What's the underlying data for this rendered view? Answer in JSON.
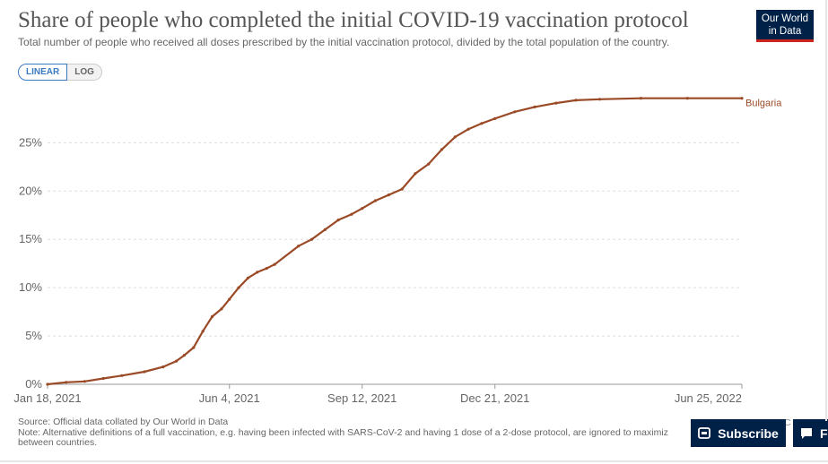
{
  "header": {
    "title": "Share of people who completed the initial COVID-19 vaccination protocol",
    "subtitle": "Total number of people who received all doses prescribed by the initial vaccination protocol, divided by the total population of the country.",
    "logo_line1": "Our World",
    "logo_line2": "in Data"
  },
  "controls": {
    "linear_label": "LINEAR",
    "log_label": "LOG"
  },
  "footer": {
    "source": "Source: Official data collated by Our World in Data",
    "note_line1": "Note: Alternative definitions of a full vaccination, e.g. having been infected with SARS-CoV-2 and having 1 dose of a 2-dose protocol, are ignored to maximiz",
    "note_line2": "between countries.",
    "subscribe_label": "Subscribe",
    "f_label": "F",
    "c_label": "C"
  },
  "colors": {
    "series": "#9a4a26",
    "grid": "#dddddd",
    "accent": "#002147"
  },
  "chart_data": {
    "type": "line",
    "title": "Share of people who completed the initial COVID-19 vaccination protocol",
    "subtitle": "Total number of people who received all doses prescribed by the initial vaccination protocol, divided by the total population of the country.",
    "xlabel": "",
    "ylabel": "",
    "x_tick_labels": [
      "Jan 18, 2021",
      "Jun 4, 2021",
      "Sep 12, 2021",
      "Dec 21, 2021",
      "Jun 25, 2022"
    ],
    "x_tick_dates": [
      "2021-01-18",
      "2021-06-04",
      "2021-09-12",
      "2021-12-21",
      "2022-06-25"
    ],
    "y_tick_labels": [
      "0%",
      "5%",
      "10%",
      "15%",
      "20%",
      "25%"
    ],
    "y_ticks": [
      0,
      5,
      10,
      15,
      20,
      25
    ],
    "xlim": [
      "2021-01-18",
      "2022-06-25"
    ],
    "ylim": [
      0,
      29.5
    ],
    "grid": "horizontal dashed",
    "legend": "line-end label",
    "series": [
      {
        "name": "Bulgaria",
        "color": "#9a4a26",
        "points": [
          [
            "2021-01-18",
            0.0
          ],
          [
            "2021-02-01",
            0.2
          ],
          [
            "2021-02-15",
            0.3
          ],
          [
            "2021-03-01",
            0.6
          ],
          [
            "2021-03-15",
            0.9
          ],
          [
            "2021-04-01",
            1.3
          ],
          [
            "2021-04-15",
            1.8
          ],
          [
            "2021-04-25",
            2.4
          ],
          [
            "2021-05-01",
            3.0
          ],
          [
            "2021-05-08",
            3.8
          ],
          [
            "2021-05-15",
            5.5
          ],
          [
            "2021-05-22",
            7.0
          ],
          [
            "2021-05-29",
            7.8
          ],
          [
            "2021-06-04",
            8.8
          ],
          [
            "2021-06-11",
            10.0
          ],
          [
            "2021-06-18",
            11.0
          ],
          [
            "2021-06-25",
            11.6
          ],
          [
            "2021-07-02",
            12.0
          ],
          [
            "2021-07-08",
            12.4
          ],
          [
            "2021-07-26",
            14.3
          ],
          [
            "2021-08-05",
            15.0
          ],
          [
            "2021-08-15",
            16.0
          ],
          [
            "2021-08-25",
            17.0
          ],
          [
            "2021-09-04",
            17.6
          ],
          [
            "2021-09-12",
            18.2
          ],
          [
            "2021-09-22",
            19.0
          ],
          [
            "2021-10-02",
            19.6
          ],
          [
            "2021-10-12",
            20.2
          ],
          [
            "2021-10-22",
            21.8
          ],
          [
            "2021-11-01",
            22.8
          ],
          [
            "2021-11-11",
            24.3
          ],
          [
            "2021-11-21",
            25.6
          ],
          [
            "2021-12-01",
            26.4
          ],
          [
            "2021-12-11",
            27.0
          ],
          [
            "2021-12-21",
            27.5
          ],
          [
            "2022-01-05",
            28.2
          ],
          [
            "2022-01-20",
            28.7
          ],
          [
            "2022-02-05",
            29.1
          ],
          [
            "2022-02-20",
            29.4
          ],
          [
            "2022-03-10",
            29.5
          ],
          [
            "2022-04-10",
            29.6
          ],
          [
            "2022-05-15",
            29.6
          ],
          [
            "2022-06-25",
            29.6
          ]
        ]
      }
    ]
  }
}
